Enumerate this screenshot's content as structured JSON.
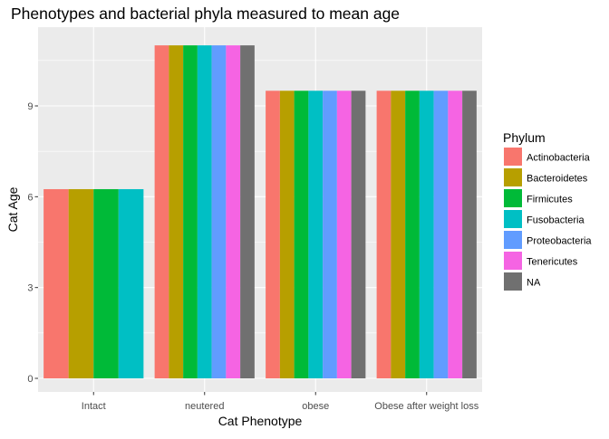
{
  "chart_data": {
    "type": "bar",
    "title": "Phenotypes and bacterial phyla measured to mean age",
    "xlabel": "Cat Phenotype",
    "ylabel": "Cat Age",
    "categories": [
      "Intact",
      "neutered",
      "obese",
      "Obese after weight loss"
    ],
    "ylim": [
      0,
      11.5
    ],
    "yticks": [
      0,
      3,
      6,
      9
    ],
    "grid": true,
    "legend_placement": "right",
    "legend_title": "Phylum",
    "series": [
      {
        "name": "Actinobacteria",
        "color": "#F8766D",
        "values": [
          6.25,
          11.0,
          9.5,
          9.5
        ]
      },
      {
        "name": "Bacteroidetes",
        "color": "#B79F00",
        "values": [
          6.25,
          11.0,
          9.5,
          9.5
        ]
      },
      {
        "name": "Firmicutes",
        "color": "#00BA38",
        "values": [
          6.25,
          11.0,
          9.5,
          9.5
        ]
      },
      {
        "name": "Fusobacteria",
        "color": "#00BFC4",
        "values": [
          6.25,
          11.0,
          9.5,
          9.5
        ]
      },
      {
        "name": "Proteobacteria",
        "color": "#619CFF",
        "values": [
          null,
          11.0,
          9.5,
          9.5
        ]
      },
      {
        "name": "Tenericutes",
        "color": "#F564E3",
        "values": [
          null,
          11.0,
          9.5,
          9.5
        ]
      },
      {
        "name": "NA",
        "color": "#707070",
        "values": [
          null,
          11.0,
          9.5,
          9.5
        ]
      }
    ]
  }
}
